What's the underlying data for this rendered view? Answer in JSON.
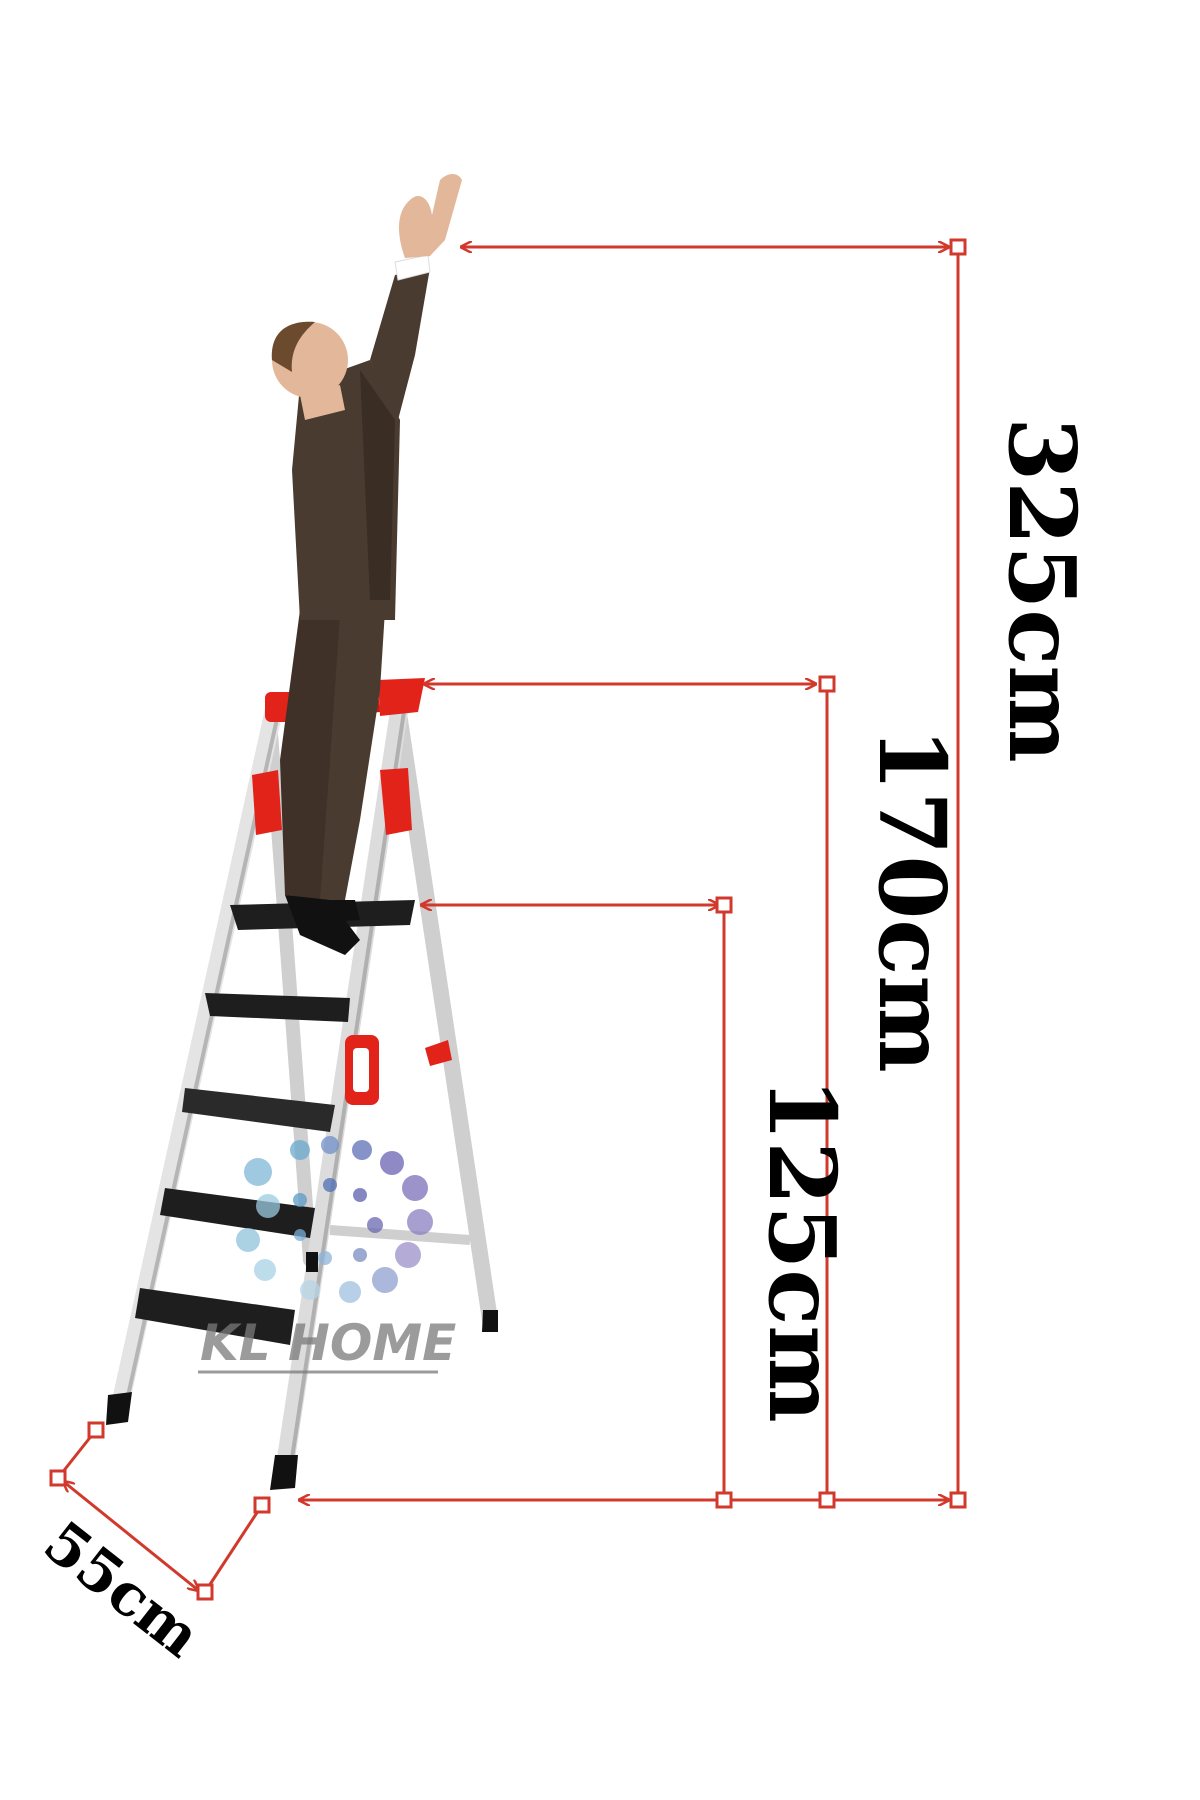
{
  "brand": {
    "name": "KL HOME"
  },
  "dimensions": {
    "reach_height": "325cm",
    "platform_height": "170cm",
    "step_height": "125cm",
    "base_width": "55cm"
  },
  "colors": {
    "dimension_line": "#d0392b",
    "ladder_red": "#e2231a",
    "step_black": "#1e1e1e",
    "rail_silver": "#d9d9d9",
    "suit": "#4a3b30"
  }
}
